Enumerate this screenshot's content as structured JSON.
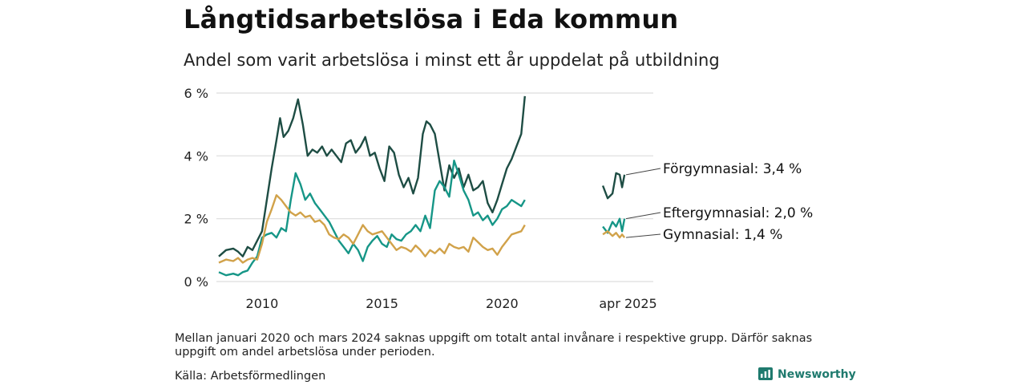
{
  "title": "Långtidsarbetslösa i Eda kommun",
  "subtitle": "Andel som varit arbetslösa i minst ett år uppdelat på utbildning",
  "note": "Mellan januari 2020 och mars 2024 saknas uppgift om totalt antal invånare i respektive grupp. Därför saknas uppgift om andel arbetslösa under perioden.",
  "source": "Källa: Arbetsförmedlingen",
  "brand": "Newsworthy",
  "colors": {
    "forgymnasial": "#1e4d44",
    "eftergymnasial": "#169687",
    "gymnasial": "#d1a24a",
    "grid": "#dddddd",
    "brand": "#1f7a6e"
  },
  "chart_data": {
    "type": "line",
    "title": "Långtidsarbetslösa i Eda kommun",
    "subtitle": "Andel som varit arbetslösa i minst ett år uppdelat på utbildning",
    "y_ticks": [
      "0 %",
      "2 %",
      "4 %",
      "6 %"
    ],
    "y_tick_values": [
      0,
      2,
      4,
      6
    ],
    "x_ticks": [
      "2010",
      "2015",
      "2020",
      "apr 2025"
    ],
    "x_tick_values": [
      2010,
      2015,
      2020,
      2025.25
    ],
    "ylim": [
      0,
      6
    ],
    "xlim": [
      2008.1,
      2026.3
    ],
    "grid": true,
    "legend": "direct labels at line ends (right)",
    "series": [
      {
        "name": "Förgymnasial",
        "label": "Förgymnasial: 3,4 %",
        "color": "#1e4d44",
        "segments": [
          [
            [
              2008.2,
              0.8
            ],
            [
              2008.5,
              1.0
            ],
            [
              2008.8,
              1.05
            ],
            [
              2009.0,
              0.95
            ],
            [
              2009.2,
              0.8
            ],
            [
              2009.4,
              1.1
            ],
            [
              2009.6,
              1.0
            ],
            [
              2009.8,
              1.3
            ],
            [
              2010.0,
              1.6
            ],
            [
              2010.2,
              2.6
            ],
            [
              2010.4,
              3.6
            ],
            [
              2010.6,
              4.5
            ],
            [
              2010.75,
              5.2
            ],
            [
              2010.9,
              4.6
            ],
            [
              2011.1,
              4.8
            ],
            [
              2011.3,
              5.2
            ],
            [
              2011.5,
              5.8
            ],
            [
              2011.7,
              5.0
            ],
            [
              2011.9,
              4.0
            ],
            [
              2012.1,
              4.2
            ],
            [
              2012.3,
              4.1
            ],
            [
              2012.5,
              4.3
            ],
            [
              2012.7,
              4.0
            ],
            [
              2012.9,
              4.2
            ],
            [
              2013.1,
              4.0
            ],
            [
              2013.3,
              3.8
            ],
            [
              2013.5,
              4.4
            ],
            [
              2013.7,
              4.5
            ],
            [
              2013.9,
              4.1
            ],
            [
              2014.1,
              4.3
            ],
            [
              2014.3,
              4.6
            ],
            [
              2014.5,
              4.0
            ],
            [
              2014.7,
              4.1
            ],
            [
              2014.9,
              3.6
            ],
            [
              2015.1,
              3.2
            ],
            [
              2015.3,
              4.3
            ],
            [
              2015.5,
              4.1
            ],
            [
              2015.7,
              3.4
            ],
            [
              2015.9,
              3.0
            ],
            [
              2016.1,
              3.3
            ],
            [
              2016.3,
              2.8
            ],
            [
              2016.5,
              3.3
            ],
            [
              2016.7,
              4.7
            ],
            [
              2016.85,
              5.1
            ],
            [
              2017.0,
              5.0
            ],
            [
              2017.2,
              4.7
            ],
            [
              2017.4,
              3.8
            ],
            [
              2017.6,
              2.9
            ],
            [
              2017.8,
              3.7
            ],
            [
              2018.0,
              3.3
            ],
            [
              2018.2,
              3.6
            ],
            [
              2018.4,
              3.0
            ],
            [
              2018.6,
              3.4
            ],
            [
              2018.8,
              2.9
            ],
            [
              2019.0,
              3.0
            ],
            [
              2019.2,
              3.2
            ],
            [
              2019.4,
              2.5
            ],
            [
              2019.6,
              2.2
            ],
            [
              2019.8,
              2.6
            ],
            [
              2020.0,
              3.1
            ],
            [
              2020.2,
              3.6
            ],
            [
              2020.4,
              3.9
            ],
            [
              2020.6,
              4.3
            ],
            [
              2020.8,
              4.7
            ],
            [
              2020.95,
              5.9
            ]
          ],
          [
            [
              2024.2,
              3.05
            ],
            [
              2024.4,
              2.65
            ],
            [
              2024.6,
              2.8
            ],
            [
              2024.75,
              3.45
            ],
            [
              2024.9,
              3.4
            ],
            [
              2025.0,
              3.0
            ],
            [
              2025.1,
              3.4
            ]
          ]
        ]
      },
      {
        "name": "Eftergymnasial",
        "label": "Eftergymnasial: 2,0 %",
        "color": "#169687",
        "segments": [
          [
            [
              2008.2,
              0.3
            ],
            [
              2008.5,
              0.2
            ],
            [
              2008.8,
              0.25
            ],
            [
              2009.0,
              0.2
            ],
            [
              2009.2,
              0.3
            ],
            [
              2009.4,
              0.35
            ],
            [
              2009.6,
              0.6
            ],
            [
              2009.8,
              0.8
            ],
            [
              2010.0,
              1.4
            ],
            [
              2010.2,
              1.5
            ],
            [
              2010.4,
              1.55
            ],
            [
              2010.6,
              1.4
            ],
            [
              2010.8,
              1.7
            ],
            [
              2011.0,
              1.6
            ],
            [
              2011.2,
              2.6
            ],
            [
              2011.4,
              3.45
            ],
            [
              2011.6,
              3.1
            ],
            [
              2011.8,
              2.6
            ],
            [
              2012.0,
              2.8
            ],
            [
              2012.2,
              2.5
            ],
            [
              2012.4,
              2.3
            ],
            [
              2012.6,
              2.1
            ],
            [
              2012.8,
              1.9
            ],
            [
              2013.0,
              1.6
            ],
            [
              2013.2,
              1.3
            ],
            [
              2013.4,
              1.1
            ],
            [
              2013.6,
              0.9
            ],
            [
              2013.8,
              1.2
            ],
            [
              2014.0,
              1.0
            ],
            [
              2014.2,
              0.65
            ],
            [
              2014.4,
              1.1
            ],
            [
              2014.6,
              1.3
            ],
            [
              2014.8,
              1.45
            ],
            [
              2015.0,
              1.2
            ],
            [
              2015.2,
              1.1
            ],
            [
              2015.4,
              1.5
            ],
            [
              2015.6,
              1.35
            ],
            [
              2015.8,
              1.3
            ],
            [
              2016.0,
              1.5
            ],
            [
              2016.2,
              1.6
            ],
            [
              2016.4,
              1.8
            ],
            [
              2016.6,
              1.6
            ],
            [
              2016.8,
              2.1
            ],
            [
              2017.0,
              1.7
            ],
            [
              2017.2,
              2.9
            ],
            [
              2017.4,
              3.2
            ],
            [
              2017.6,
              3.0
            ],
            [
              2017.8,
              2.7
            ],
            [
              2018.0,
              3.85
            ],
            [
              2018.2,
              3.4
            ],
            [
              2018.4,
              2.9
            ],
            [
              2018.6,
              2.6
            ],
            [
              2018.8,
              2.1
            ],
            [
              2019.0,
              2.2
            ],
            [
              2019.2,
              1.95
            ],
            [
              2019.4,
              2.1
            ],
            [
              2019.6,
              1.8
            ],
            [
              2019.8,
              2.0
            ],
            [
              2020.0,
              2.3
            ],
            [
              2020.2,
              2.4
            ],
            [
              2020.4,
              2.6
            ],
            [
              2020.6,
              2.5
            ],
            [
              2020.8,
              2.4
            ],
            [
              2020.95,
              2.6
            ]
          ],
          [
            [
              2024.2,
              1.75
            ],
            [
              2024.4,
              1.55
            ],
            [
              2024.6,
              1.9
            ],
            [
              2024.75,
              1.75
            ],
            [
              2024.9,
              2.0
            ],
            [
              2025.0,
              1.6
            ],
            [
              2025.1,
              2.0
            ]
          ]
        ]
      },
      {
        "name": "Gymnasial",
        "label": "Gymnasial: 1,4 %",
        "color": "#d1a24a",
        "segments": [
          [
            [
              2008.2,
              0.6
            ],
            [
              2008.5,
              0.7
            ],
            [
              2008.8,
              0.65
            ],
            [
              2009.0,
              0.75
            ],
            [
              2009.2,
              0.6
            ],
            [
              2009.4,
              0.7
            ],
            [
              2009.6,
              0.75
            ],
            [
              2009.8,
              0.7
            ],
            [
              2010.0,
              1.2
            ],
            [
              2010.2,
              1.9
            ],
            [
              2010.4,
              2.3
            ],
            [
              2010.6,
              2.75
            ],
            [
              2010.8,
              2.6
            ],
            [
              2011.0,
              2.4
            ],
            [
              2011.2,
              2.2
            ],
            [
              2011.4,
              2.1
            ],
            [
              2011.6,
              2.2
            ],
            [
              2011.8,
              2.05
            ],
            [
              2012.0,
              2.1
            ],
            [
              2012.2,
              1.9
            ],
            [
              2012.4,
              1.95
            ],
            [
              2012.6,
              1.8
            ],
            [
              2012.8,
              1.5
            ],
            [
              2013.0,
              1.4
            ],
            [
              2013.2,
              1.35
            ],
            [
              2013.4,
              1.5
            ],
            [
              2013.6,
              1.4
            ],
            [
              2013.8,
              1.2
            ],
            [
              2014.0,
              1.5
            ],
            [
              2014.2,
              1.8
            ],
            [
              2014.4,
              1.6
            ],
            [
              2014.6,
              1.5
            ],
            [
              2014.8,
              1.55
            ],
            [
              2015.0,
              1.6
            ],
            [
              2015.2,
              1.4
            ],
            [
              2015.4,
              1.2
            ],
            [
              2015.6,
              1.0
            ],
            [
              2015.8,
              1.1
            ],
            [
              2016.0,
              1.05
            ],
            [
              2016.2,
              0.95
            ],
            [
              2016.4,
              1.15
            ],
            [
              2016.6,
              1.0
            ],
            [
              2016.8,
              0.8
            ],
            [
              2017.0,
              1.0
            ],
            [
              2017.2,
              0.9
            ],
            [
              2017.4,
              1.05
            ],
            [
              2017.6,
              0.9
            ],
            [
              2017.8,
              1.2
            ],
            [
              2018.0,
              1.1
            ],
            [
              2018.2,
              1.05
            ],
            [
              2018.4,
              1.1
            ],
            [
              2018.6,
              0.95
            ],
            [
              2018.8,
              1.4
            ],
            [
              2019.0,
              1.25
            ],
            [
              2019.2,
              1.1
            ],
            [
              2019.4,
              1.0
            ],
            [
              2019.6,
              1.05
            ],
            [
              2019.8,
              0.85
            ],
            [
              2020.0,
              1.1
            ],
            [
              2020.2,
              1.3
            ],
            [
              2020.4,
              1.5
            ],
            [
              2020.6,
              1.55
            ],
            [
              2020.8,
              1.6
            ],
            [
              2020.95,
              1.8
            ]
          ],
          [
            [
              2024.2,
              1.5
            ],
            [
              2024.4,
              1.6
            ],
            [
              2024.6,
              1.45
            ],
            [
              2024.75,
              1.55
            ],
            [
              2024.9,
              1.4
            ],
            [
              2025.0,
              1.5
            ],
            [
              2025.1,
              1.4
            ]
          ]
        ]
      }
    ]
  }
}
